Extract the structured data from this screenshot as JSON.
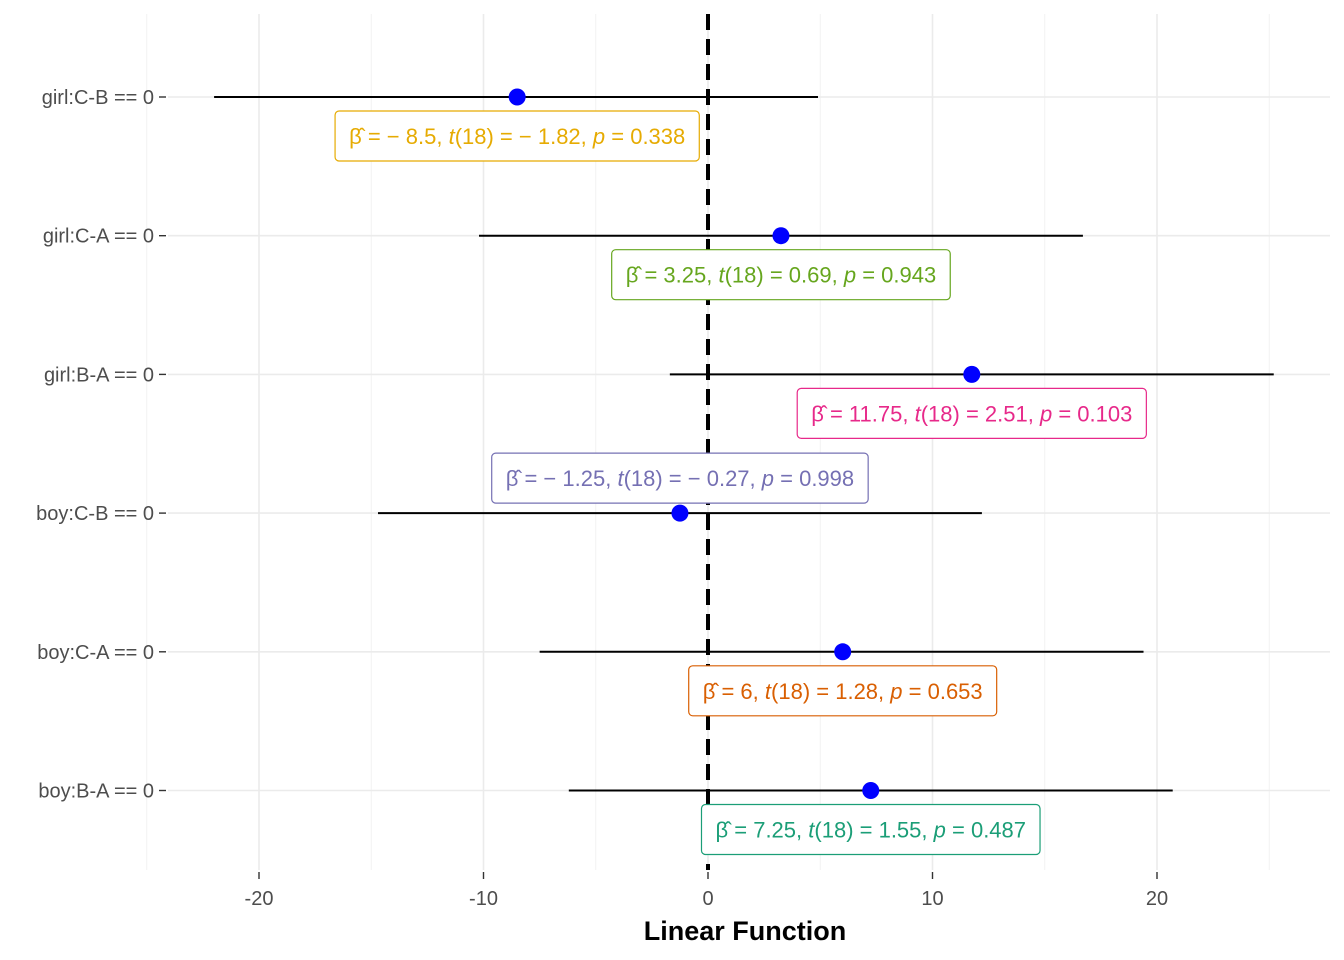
{
  "chart_data": {
    "type": "scatter",
    "xlabel": "Linear Function",
    "ylabel": "",
    "xlim": [
      -25.5,
      27.5
    ],
    "x_ticks": [
      -20,
      -10,
      0,
      10,
      20
    ],
    "x_tick_labels": [
      "-20",
      "-10",
      "0",
      "10",
      "20"
    ],
    "reference_line": 0,
    "grid": true,
    "point_color": "#0000FF",
    "comparisons": [
      {
        "label": "girl:C-B == 0",
        "estimate": -8.5,
        "ci": [
          -22.0,
          4.9
        ],
        "beta": "− 8.5",
        "t_df": "18",
        "t": "− 1.82",
        "p": "0.338",
        "color": "#E6AB02",
        "label_side": "below"
      },
      {
        "label": "girl:C-A == 0",
        "estimate": 3.25,
        "ci": [
          -10.2,
          16.7
        ],
        "beta": "3.25",
        "t_df": "18",
        "t": "0.69",
        "p": "0.943",
        "color": "#66A61E",
        "label_side": "below"
      },
      {
        "label": "girl:B-A == 0",
        "estimate": 11.75,
        "ci": [
          -1.7,
          25.2
        ],
        "beta": "11.75",
        "t_df": "18",
        "t": "2.51",
        "p": "0.103",
        "color": "#E7298A",
        "label_side": "below"
      },
      {
        "label": "boy:C-B == 0",
        "estimate": -1.25,
        "ci": [
          -14.7,
          12.2
        ],
        "beta": "− 1.25",
        "t_df": "18",
        "t": "− 0.27",
        "p": "0.998",
        "color": "#7570B3",
        "label_side": "above"
      },
      {
        "label": "boy:C-A == 0",
        "estimate": 6.0,
        "ci": [
          -7.5,
          19.4
        ],
        "beta": "6",
        "t_df": "18",
        "t": "1.28",
        "p": "0.653",
        "color": "#D95F02",
        "label_side": "below"
      },
      {
        "label": "boy:B-A == 0",
        "estimate": 7.25,
        "ci": [
          -6.2,
          20.7
        ],
        "beta": "7.25",
        "t_df": "18",
        "t": "1.55",
        "p": "0.487",
        "color": "#1B9E77",
        "label_side": "below"
      }
    ]
  }
}
